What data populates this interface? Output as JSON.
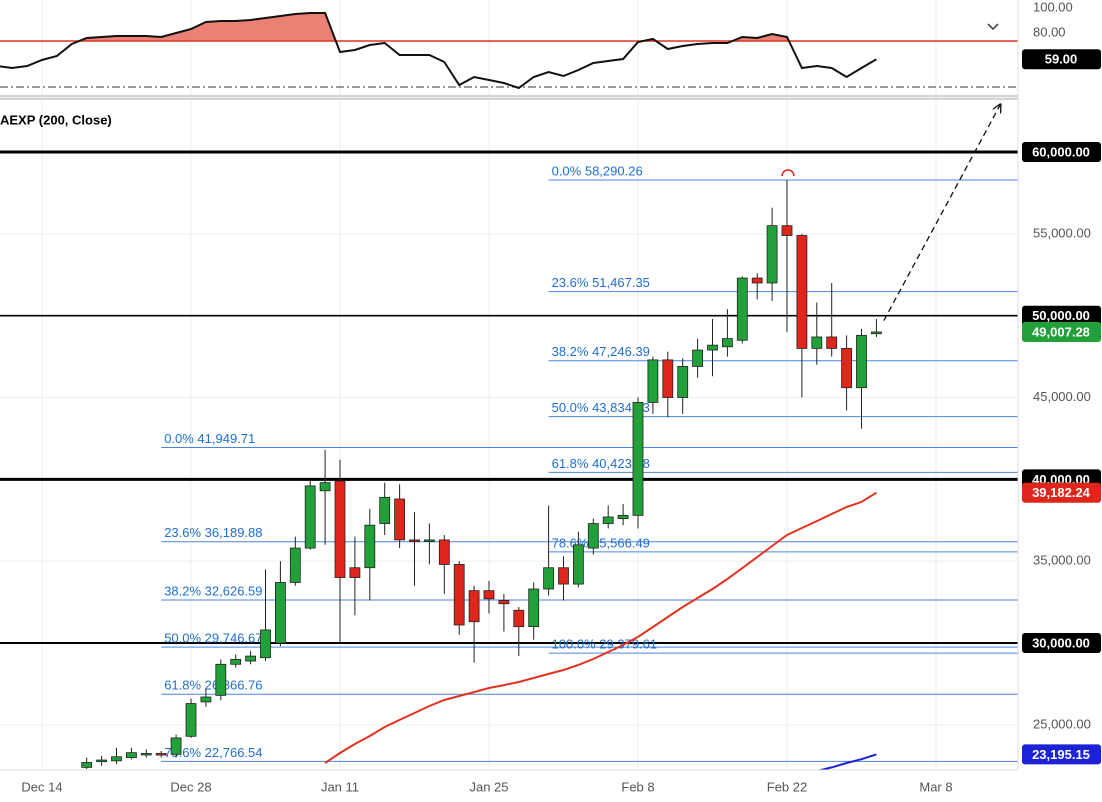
{
  "chart_data": {
    "type": "candlestick",
    "study_label": "AEXP (200, Close)",
    "categories": [
      null,
      null,
      null,
      "Dec 14",
      null,
      null,
      null,
      null,
      null,
      null,
      null,
      null,
      null,
      "Dec 28",
      null,
      null,
      null,
      null,
      null,
      null,
      null,
      null,
      null,
      "Jan 11",
      null,
      null,
      null,
      null,
      null,
      null,
      null,
      null,
      null,
      "Jan 25",
      null,
      null,
      null,
      null,
      null,
      null,
      null,
      null,
      null,
      "Feb 8",
      null,
      null,
      null,
      null,
      null,
      null,
      null,
      null,
      null,
      "Feb 22",
      null,
      null,
      null,
      null,
      null,
      null,
      null,
      null,
      null,
      "Mar 8"
    ],
    "up_color": "#22a03a",
    "down_color": "#e0251b",
    "open": [
      null,
      null,
      null,
      null,
      null,
      null,
      22400,
      22750,
      22800,
      23000,
      23200,
      23250,
      23200,
      24300,
      26400,
      26800,
      28700,
      28900,
      29100,
      30000,
      33700,
      35800,
      39300,
      39900,
      34600,
      34600,
      37300,
      38800,
      36300,
      36200,
      36300,
      34800,
      33200,
      33200,
      32600,
      32000,
      31000,
      33300,
      34600,
      33600,
      35800,
      37300,
      37600,
      37800,
      44700,
      47300,
      45000,
      46900,
      47900,
      48100,
      48500,
      52300,
      52000,
      55500,
      54900,
      48000,
      48700,
      48000,
      45600,
      48900,
      null,
      null,
      null,
      null
    ],
    "high": [
      null,
      null,
      null,
      null,
      null,
      null,
      23000,
      23100,
      23600,
      23600,
      23500,
      23400,
      24400,
      26600,
      27200,
      29000,
      29300,
      29500,
      34500,
      35000,
      36500,
      40000,
      41800,
      41200,
      36500,
      38200,
      39800,
      39700,
      38000,
      37300,
      36600,
      35000,
      33500,
      33800,
      33000,
      32200,
      33700,
      38400,
      35300,
      36800,
      37600,
      38400,
      38500,
      45000,
      47500,
      47800,
      47400,
      48600,
      49800,
      50400,
      52400,
      52600,
      56600,
      58290.26,
      55000,
      50800,
      52000,
      48800,
      49200,
      49800,
      null,
      null,
      null,
      null
    ],
    "low": [
      null,
      null,
      null,
      null,
      null,
      null,
      22300,
      22500,
      22600,
      22900,
      23000,
      23000,
      23000,
      24200,
      26100,
      26500,
      28500,
      28700,
      28900,
      29800,
      33500,
      35700,
      36000,
      30000,
      31700,
      32600,
      36600,
      35800,
      33500,
      34800,
      33000,
      30500,
      28800,
      31800,
      30700,
      29200,
      30200,
      32900,
      32600,
      33400,
      35400,
      37000,
      37200,
      37000,
      44000,
      43800,
      44000,
      46200,
      46300,
      47500,
      48300,
      51000,
      50900,
      49000,
      45000,
      47000,
      47500,
      44200,
      43100,
      48700,
      null,
      null,
      null,
      null
    ],
    "close": [
      null,
      null,
      null,
      null,
      null,
      null,
      22700,
      22850,
      23050,
      23300,
      23250,
      23150,
      24200,
      26300,
      26700,
      28700,
      29000,
      29200,
      30800,
      33700,
      35800,
      39600,
      39800,
      34000,
      34000,
      37200,
      38900,
      36300,
      36200,
      36300,
      34800,
      31100,
      31300,
      32700,
      32400,
      31000,
      33300,
      34600,
      33600,
      36000,
      37300,
      37700,
      37800,
      44700,
      47300,
      45000,
      46900,
      47900,
      48200,
      48600,
      52300,
      52000,
      55500,
      54900,
      48000,
      48700,
      48000,
      45600,
      48800,
      49007.28,
      null,
      null,
      null,
      null
    ],
    "overlays": [
      {
        "color": "#e3321f",
        "values": [
          null,
          null,
          null,
          null,
          null,
          null,
          null,
          null,
          null,
          null,
          null,
          null,
          null,
          null,
          null,
          null,
          null,
          null,
          null,
          null,
          null,
          null,
          22670,
          23280,
          23830,
          24320,
          24870,
          25300,
          25720,
          26150,
          26520,
          26760,
          27000,
          27250,
          27430,
          27620,
          27860,
          28110,
          28350,
          28660,
          29020,
          29450,
          29880,
          30370,
          30980,
          31590,
          32200,
          32750,
          33300,
          33910,
          34580,
          35250,
          35930,
          36600,
          37030,
          37450,
          37880,
          38310,
          38620,
          39182.24,
          null,
          null,
          null,
          null
        ]
      },
      {
        "color": "#1c22d6",
        "values": [
          null,
          null,
          null,
          null,
          null,
          null,
          null,
          null,
          null,
          null,
          null,
          null,
          null,
          null,
          null,
          null,
          null,
          null,
          null,
          null,
          null,
          null,
          null,
          null,
          null,
          null,
          null,
          null,
          null,
          null,
          null,
          null,
          null,
          null,
          null,
          null,
          null,
          null,
          null,
          null,
          null,
          null,
          null,
          null,
          null,
          null,
          null,
          null,
          null,
          null,
          null,
          null,
          null,
          null,
          null,
          22180,
          22400,
          22670,
          22900,
          23195.15,
          null,
          null,
          null,
          null
        ]
      }
    ],
    "ylim": [
      22240,
      63180
    ],
    "yticks": [
      {
        "value": 55000,
        "label": "55,000.00"
      },
      {
        "value": 45000,
        "label": "45,000.00"
      },
      {
        "value": 35000,
        "label": "35,000.00"
      },
      {
        "value": 25000,
        "label": "25,000.00"
      }
    ],
    "price_lines": [
      {
        "value": 60000,
        "label": "60,000.00",
        "width": 3
      },
      {
        "value": 50000,
        "label": "50,000.00",
        "width": 1.6
      },
      {
        "value": 40000,
        "label": "40,000.00",
        "width": 3
      },
      {
        "value": 30000,
        "label": "30,000.00",
        "width": 2
      }
    ],
    "badges": [
      {
        "value": 49007.28,
        "label": "49,007.28",
        "color": "#22a03a"
      },
      {
        "value": 39182.24,
        "label": "39,182.24",
        "color": "#e0251b"
      },
      {
        "value": 23195.15,
        "label": "23,195.15",
        "color": "#1c22d6"
      }
    ],
    "fibs": [
      {
        "start": 11,
        "levels": [
          {
            "text": "0.0% 41,949.71",
            "value": 41949.71
          },
          {
            "text": "23.6% 36,189.88",
            "value": 36189.88
          },
          {
            "text": "38.2% 32,626.59",
            "value": 32626.59
          },
          {
            "text": "50.0% 29,746.67",
            "value": 29746.67
          },
          {
            "text": "61.8% 26,866.76",
            "value": 26866.76
          },
          {
            "text": "78.6% 22,766.54",
            "value": 22766.54
          }
        ]
      },
      {
        "start": 37,
        "levels": [
          {
            "text": "0.0% 58,290.26",
            "value": 58290.26
          },
          {
            "text": "23.6% 51,467.35",
            "value": 51467.35
          },
          {
            "text": "38.2% 47,246.39",
            "value": 47246.39
          },
          {
            "text": "50.0% 43,834.93",
            "value": 43834.93
          },
          {
            "text": "61.8% 40,423.48",
            "value": 40423.48
          },
          {
            "text": "78.6% 35,566.49",
            "value": 35566.49
          },
          {
            "text": "100.0% 29,379.61",
            "value": 29379.61
          }
        ]
      }
    ],
    "projection": {
      "x": [
        59.5,
        67.3
      ],
      "values": [
        49700,
        62870
      ]
    },
    "indicator": {
      "values": [
        53.6,
        52.0,
        53.6,
        58.4,
        61.6,
        71.2,
        76.0,
        76.8,
        77.6,
        77.6,
        77.6,
        76.8,
        80.0,
        83.2,
        88.8,
        89.6,
        89.6,
        90.4,
        92.0,
        93.6,
        95.2,
        96.0,
        96.0,
        64.8,
        66.4,
        70.4,
        72.0,
        62.4,
        62.4,
        62.4,
        56.8,
        38.4,
        44.8,
        42.4,
        40.0,
        36.0,
        44.8,
        48.8,
        45.6,
        50.4,
        56.0,
        57.6,
        59.2,
        72.8,
        75.2,
        67.2,
        69.6,
        71.2,
        72.0,
        72.0,
        76.8,
        76.0,
        79.2,
        76.8,
        52.0,
        53.6,
        52.0,
        44.8,
        52.0,
        59,
        null,
        null,
        null,
        null
      ],
      "ylim": [
        30.4,
        106.4
      ],
      "yticks": [
        {
          "value": 100,
          "label": "100.00"
        },
        {
          "value": 80,
          "label": "80.00"
        }
      ],
      "levels": [
        {
          "value": 73.6,
          "color": "#e3321f",
          "style": "solid"
        },
        {
          "value": 36.8,
          "color": "#333333",
          "style": "dashdot"
        }
      ],
      "fill_color": "#e86a5c",
      "last": {
        "value": 59,
        "label": "59.00"
      }
    }
  }
}
